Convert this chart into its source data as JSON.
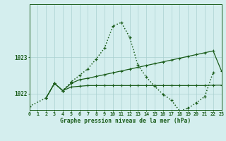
{
  "title": "Graphe pression niveau de la mer (hPa)",
  "bg_color": "#d4eeee",
  "line_color": "#1a5c1a",
  "grid_color": "#aad0d0",
  "xlim": [
    0,
    23
  ],
  "ylim": [
    1021.55,
    1024.45
  ],
  "yticks": [
    1022,
    1023
  ],
  "hours": [
    0,
    1,
    2,
    3,
    4,
    5,
    6,
    7,
    8,
    9,
    10,
    11,
    12,
    13,
    14,
    15,
    16,
    17,
    18,
    19,
    20,
    21,
    22,
    23
  ],
  "dotted": [
    1021.65,
    null,
    1021.88,
    1022.28,
    1022.08,
    1022.32,
    1022.5,
    1022.68,
    1022.95,
    1023.25,
    1023.85,
    1023.95,
    1023.55,
    1022.78,
    1022.45,
    1022.2,
    1021.98,
    1021.82,
    1021.52,
    1021.6,
    1021.75,
    1021.92,
    1022.58,
    null
  ],
  "solid_main": [
    null,
    null,
    1021.88,
    1022.28,
    1022.08,
    1022.28,
    1022.38,
    1022.42,
    1022.47,
    1022.52,
    1022.57,
    1022.62,
    1022.67,
    1022.72,
    1022.77,
    1022.82,
    1022.87,
    1022.92,
    1022.97,
    1023.02,
    1023.07,
    1023.12,
    1023.17,
    1022.62
  ],
  "solid_flat": [
    null,
    null,
    1021.88,
    1022.28,
    1022.08,
    1022.18,
    1022.2,
    1022.22,
    1022.22,
    1022.22,
    1022.22,
    1022.22,
    1022.22,
    1022.22,
    1022.22,
    1022.22,
    1022.22,
    1022.22,
    1022.22,
    1022.22,
    1022.22,
    1022.22,
    1022.23,
    1022.23
  ]
}
